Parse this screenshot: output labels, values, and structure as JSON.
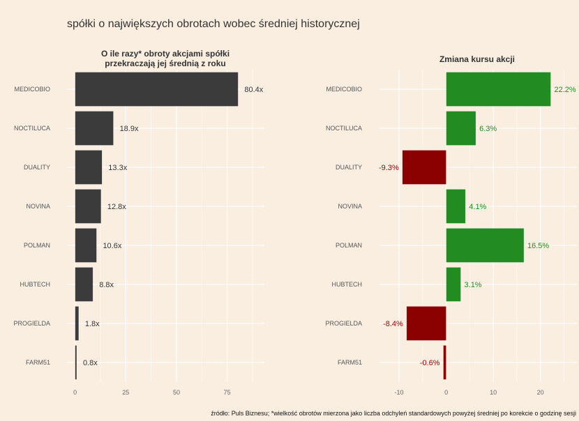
{
  "title": "spółki o największych obrotach wobec średniej historycznej",
  "caption": "źródło: Puls Biznesu; *wielkość obrotów mierzona jako liczba odchyleń standardowych powyżej średniej po korekcie o godzinę sesji",
  "colors": {
    "background": "#FAEEE1",
    "bar_dark": "#3B3B3B",
    "positive": "#228B22",
    "negative": "#8B0000",
    "grid": "#FFFFFF"
  },
  "chart_data": [
    {
      "type": "bar",
      "orientation": "horizontal",
      "title_lines": [
        "O ile razy* obroty akcjami spółki",
        "przekraczają jej średnią z roku"
      ],
      "categories": [
        "MEDICOBIO",
        "NOCTILUCA",
        "DUALITY",
        "NOVINA",
        "POLMAN",
        "HUBTECH",
        "PROGIELDA",
        "FARM51"
      ],
      "values": [
        80.4,
        18.9,
        13.3,
        12.8,
        10.6,
        8.8,
        1.8,
        0.8
      ],
      "value_labels": [
        "80.4x",
        "18.9x",
        "13.3x",
        "12.8x",
        "10.6x",
        "8.8x",
        "1.8x",
        "0.8x"
      ],
      "xlim": [
        -4,
        93
      ],
      "xticks": [
        0,
        25,
        50,
        75
      ],
      "xtick_labels": [
        "0",
        "25",
        "50",
        "75"
      ],
      "minor_xticks": [
        12.5,
        37.5,
        62.5,
        87.5
      ],
      "grid": true,
      "xlabel": "",
      "ylabel": ""
    },
    {
      "type": "bar",
      "orientation": "horizontal",
      "title_lines": [
        "Zmiana kursu akcji"
      ],
      "categories": [
        "MEDICOBIO",
        "NOCTILUCA",
        "DUALITY",
        "NOVINA",
        "POLMAN",
        "HUBTECH",
        "PROGIELDA",
        "FARM51"
      ],
      "values": [
        22.2,
        6.3,
        -9.3,
        4.1,
        16.5,
        3.1,
        -8.4,
        -0.6
      ],
      "value_labels": [
        "22.2%",
        "6.3%",
        "-9.3%",
        "4.1%",
        "16.5%",
        "3.1%",
        "-8.4%",
        "-0.6%"
      ],
      "xlim": [
        -14.3,
        27.6
      ],
      "xticks": [
        -10,
        0,
        10,
        20
      ],
      "xtick_labels": [
        "-10",
        "0",
        "10",
        "20"
      ],
      "minor_xticks": [
        -5,
        5,
        15,
        25
      ],
      "grid": true,
      "xlabel": "",
      "ylabel": ""
    }
  ]
}
